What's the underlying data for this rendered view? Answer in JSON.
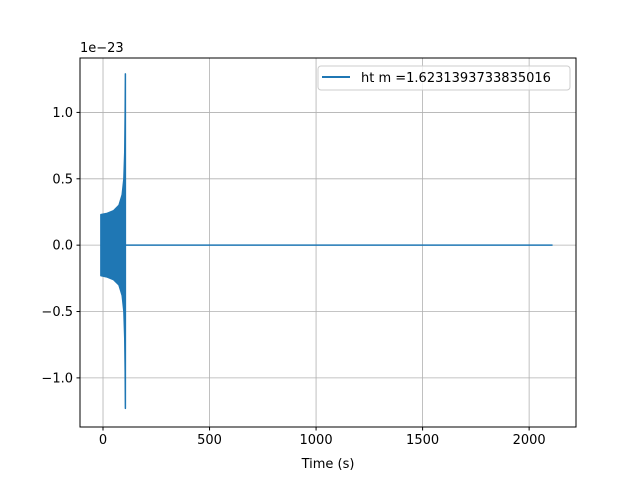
{
  "chart_data": {
    "type": "line",
    "title": "",
    "xlabel": "Time (s)",
    "ylabel": "",
    "y_offset_label": "1e−23",
    "xlim": [
      -108,
      2220
    ],
    "ylim": [
      -1.37,
      1.41
    ],
    "x_ticks": [
      0,
      500,
      1000,
      1500,
      2000
    ],
    "x_tick_labels": [
      "0",
      "500",
      "1000",
      "1500",
      "2000"
    ],
    "y_ticks": [
      -1.0,
      -0.5,
      0.0,
      0.5,
      1.0
    ],
    "y_tick_labels": [
      "−1.0",
      "−0.5",
      "0.0",
      "0.5",
      "1.0"
    ],
    "grid": true,
    "legend_placement": "top-right",
    "series": [
      {
        "name": "ht m =1.6231393733835016",
        "color": "#1f77b4",
        "envelope_upper": {
          "x": [
            -10,
            20,
            50,
            75,
            90,
            98,
            102,
            104,
            105
          ],
          "y": [
            0.23,
            0.24,
            0.26,
            0.3,
            0.38,
            0.5,
            0.7,
            1.0,
            1.29
          ]
        },
        "envelope_lower": {
          "x": [
            -10,
            20,
            50,
            75,
            90,
            98,
            102,
            104,
            105
          ],
          "y": [
            -0.23,
            -0.24,
            -0.26,
            -0.3,
            -0.38,
            -0.5,
            -0.7,
            -0.95,
            -1.23
          ]
        },
        "flat_segment": {
          "x": [
            105,
            2110
          ],
          "y": [
            0,
            0
          ]
        }
      }
    ]
  }
}
